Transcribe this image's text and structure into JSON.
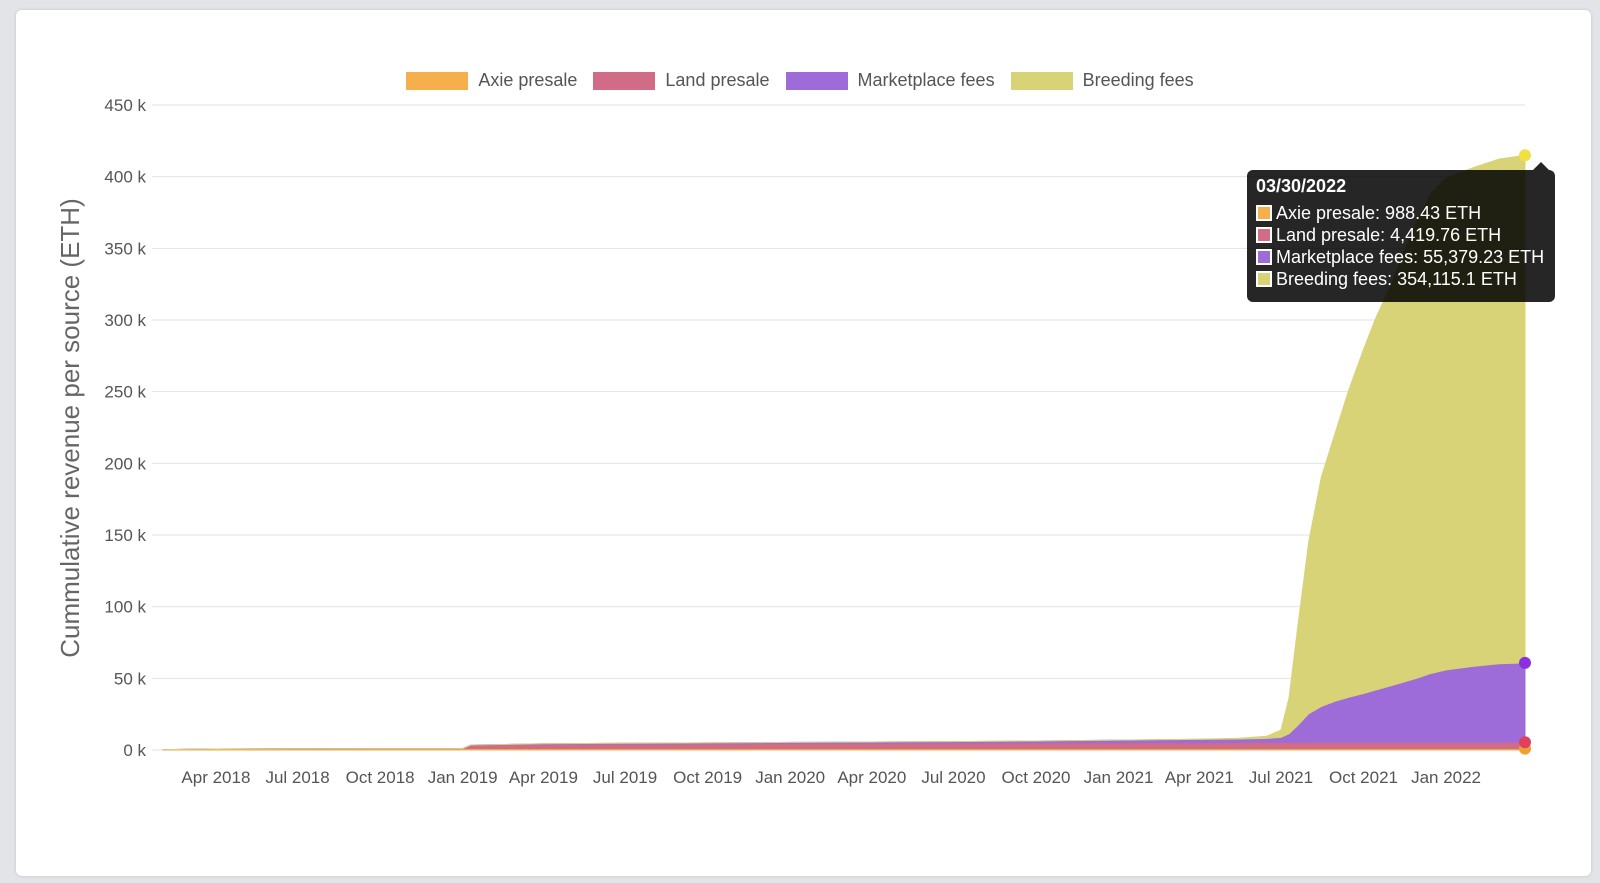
{
  "chart_data": {
    "type": "area",
    "stacked": true,
    "ylabel": "Cummulative revenue per source (ETH)",
    "ylim": [
      0,
      450000
    ],
    "yticks": [
      "0 k",
      "50 k",
      "100 k",
      "150 k",
      "200 k",
      "250 k",
      "300 k",
      "350 k",
      "400 k",
      "450 k"
    ],
    "xticks": [
      "Apr 2018",
      "Jul 2018",
      "Oct 2018",
      "Jan 2019",
      "Apr 2019",
      "Jul 2019",
      "Oct 2019",
      "Jan 2020",
      "Apr 2020",
      "Jul 2020",
      "Oct 2020",
      "Jan 2021",
      "Apr 2021",
      "Jul 2021",
      "Oct 2021",
      "Jan 2022"
    ],
    "xtick_dates": [
      "2018-04-01",
      "2018-07-01",
      "2018-10-01",
      "2019-01-01",
      "2019-04-01",
      "2019-07-01",
      "2019-10-01",
      "2020-01-01",
      "2020-04-01",
      "2020-07-01",
      "2020-10-01",
      "2021-01-01",
      "2021-04-01",
      "2021-07-01",
      "2021-10-01",
      "2022-01-01"
    ],
    "grid": true,
    "legend_position": "top",
    "x": [
      "2018-02-01",
      "2018-04-01",
      "2018-07-01",
      "2018-10-01",
      "2019-01-01",
      "2019-01-10",
      "2019-04-01",
      "2019-07-01",
      "2019-10-01",
      "2020-01-01",
      "2020-04-01",
      "2020-07-01",
      "2020-10-01",
      "2021-01-01",
      "2021-04-01",
      "2021-05-15",
      "2021-06-15",
      "2021-07-01",
      "2021-07-10",
      "2021-07-20",
      "2021-08-01",
      "2021-08-15",
      "2021-09-01",
      "2021-09-15",
      "2021-10-01",
      "2021-10-15",
      "2021-11-01",
      "2021-11-15",
      "2021-12-01",
      "2021-12-15",
      "2022-01-01",
      "2022-02-01",
      "2022-03-01",
      "2022-03-30"
    ],
    "series": [
      {
        "name": "Axie presale",
        "color": "#f5b04d",
        "values": [
          300,
          700,
          900,
          950,
          960,
          970,
          975,
          978,
          980,
          982,
          983,
          984,
          985,
          985,
          986,
          986,
          987,
          987,
          987,
          987,
          987,
          988,
          988,
          988,
          988,
          988,
          988,
          988,
          988,
          988,
          988,
          988,
          988,
          988.43
        ]
      },
      {
        "name": "Land presale",
        "color": "#d06c86",
        "values": [
          0,
          0,
          0,
          0,
          0,
          2300,
          3000,
          3200,
          3400,
          3600,
          3800,
          3900,
          4000,
          4100,
          4200,
          4250,
          4300,
          4320,
          4340,
          4360,
          4380,
          4390,
          4400,
          4405,
          4410,
          4412,
          4414,
          4416,
          4417,
          4418,
          4419,
          4419,
          4419.5,
          4419.76
        ]
      },
      {
        "name": "Marketplace fees",
        "color": "#9d6cd8",
        "values": [
          0,
          0,
          0,
          0,
          0,
          200,
          400,
          500,
          600,
          700,
          800,
          1000,
          1300,
          1800,
          2200,
          2400,
          2800,
          3500,
          6000,
          12000,
          20000,
          25000,
          29000,
          31500,
          34000,
          36500,
          39500,
          42000,
          45000,
          48000,
          50500,
          53000,
          54800,
          55379.23
        ]
      },
      {
        "name": "Breeding fees",
        "color": "#d8d377",
        "values": [
          0,
          0,
          0,
          0,
          0,
          0,
          0,
          0,
          0,
          0,
          0,
          0,
          0,
          0,
          200,
          600,
          1500,
          5000,
          25000,
          70000,
          120000,
          160000,
          190000,
          215000,
          240000,
          260000,
          280000,
          300000,
          320000,
          335000,
          343000,
          348000,
          352000,
          354115.1
        ]
      }
    ]
  },
  "tooltip": {
    "date": "03/30/2022",
    "rows": [
      {
        "text": "Axie presale: 988.43 ETH",
        "color": "#f5b04d"
      },
      {
        "text": "Land presale: 4,419.76 ETH",
        "color": "#d06c86"
      },
      {
        "text": "Marketplace fees: 55,379.23 ETH",
        "color": "#9d6cd8"
      },
      {
        "text": "Breeding fees: 354,115.1 ETH",
        "color": "#d8d377"
      }
    ]
  },
  "marker_colors": [
    "#f0a030",
    "#e04060",
    "#8a30e0",
    "#f0e040"
  ]
}
